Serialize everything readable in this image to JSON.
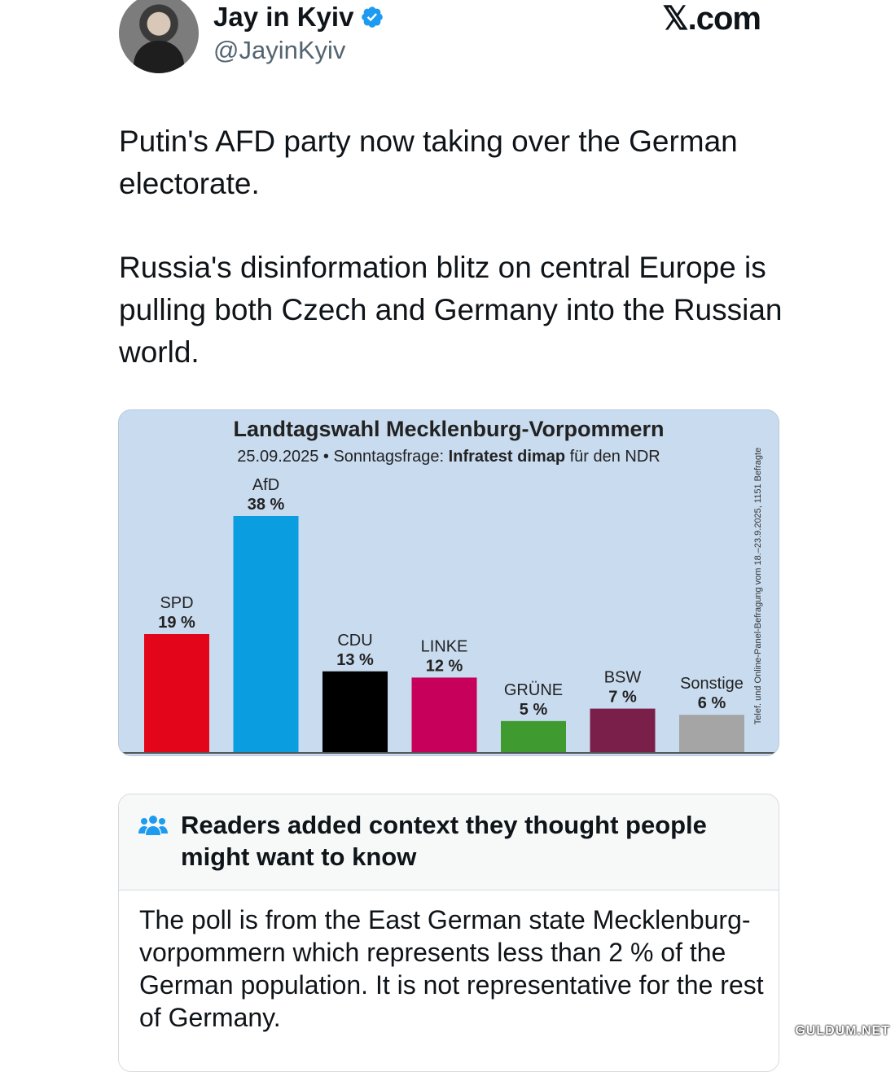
{
  "author": {
    "name": "Jay in Kyiv",
    "handle": "@JayinKyiv",
    "verified": true
  },
  "site_label": "𝕏.com",
  "tweet": {
    "paragraphs": [
      "Putin's AFD party now taking over the German electorate.",
      "Russia's disinformation blitz on central Europe is pulling both Czech and Germany into the Russian world."
    ]
  },
  "chart_image": {
    "background": "#c9dbef",
    "source_note": "Telef. und Online-Panel-Befragung vom 18.–23.9.2025, 1151 Befragte"
  },
  "chart_data": {
    "type": "bar",
    "title": "Landtagswahl Mecklenburg-Vorpommern",
    "subtitle_date": "25.09.2025 • Sonntagsfrage:",
    "subtitle_source": "Infratest dimap",
    "subtitle_tail": "für den NDR",
    "categories": [
      "SPD",
      "AfD",
      "CDU",
      "LINKE",
      "GRÜNE",
      "BSW",
      "Sonstige"
    ],
    "values": [
      19,
      38,
      13,
      12,
      5,
      7,
      6
    ],
    "value_labels": [
      "19 %",
      "38 %",
      "13 %",
      "12 %",
      "5 %",
      "7 %",
      "6 %"
    ],
    "colors": [
      "#e3061a",
      "#0a9ee1",
      "#000000",
      "#c6005b",
      "#3f9a2f",
      "#7a1f4a",
      "#a5a5a5"
    ],
    "unit": "%",
    "ylim": [
      0,
      40
    ],
    "grid": false
  },
  "community_note": {
    "header": "Readers added context they thought people might want to know",
    "icon": "people-icon",
    "body": "The poll is from the East German state Mecklenburg-vorpommern which represents less than 2 % of the German population. It is not representative for the rest of Germany."
  },
  "watermark": "GULDUM.NET"
}
